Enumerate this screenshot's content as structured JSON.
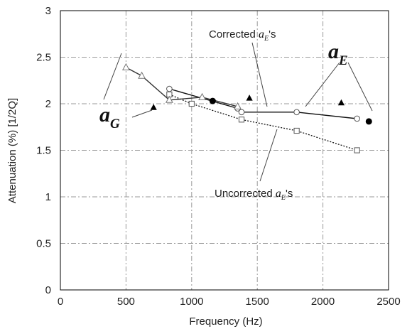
{
  "chart_data": {
    "type": "line",
    "title": "",
    "xlabel": "Frequency (Hz)",
    "ylabel": "Attenuation (%) [1/2Q]",
    "xlim": [
      0,
      2500
    ],
    "ylim": [
      0,
      3
    ],
    "x_ticks": [
      "0",
      "500",
      "1000",
      "1500",
      "2000",
      "2500"
    ],
    "y_ticks": [
      "0",
      "0.5",
      "1",
      "1.5",
      "2",
      "2.5",
      "3"
    ],
    "grid": true,
    "series": [
      {
        "name": "Corrected a_E's",
        "marker": "open-circle",
        "line": "solid",
        "points": [
          [
            830,
            2.16
          ],
          [
            1350,
            1.95
          ],
          [
            1380,
            1.91
          ],
          [
            1800,
            1.91
          ],
          [
            2260,
            1.84
          ]
        ]
      },
      {
        "name": "Uncorrected a_E's",
        "marker": "open-square",
        "line": "dotted",
        "points": [
          [
            830,
            2.1
          ],
          [
            1000,
            2.0
          ],
          [
            1380,
            1.83
          ],
          [
            1800,
            1.71
          ],
          [
            2260,
            1.5
          ]
        ]
      },
      {
        "name": "a_G",
        "marker": "open-triangle",
        "line": "solid",
        "points": [
          [
            500,
            2.39
          ],
          [
            620,
            2.3
          ],
          [
            830,
            2.04
          ],
          [
            1080,
            2.07
          ],
          [
            1350,
            1.97
          ]
        ]
      },
      {
        "name": "filled-triangles",
        "marker": "filled-triangle",
        "line": "none",
        "points": [
          [
            710,
            1.96
          ],
          [
            1440,
            2.06
          ],
          [
            2140,
            2.01
          ]
        ]
      },
      {
        "name": "filled-circles",
        "marker": "filled-circle",
        "line": "none",
        "points": [
          [
            1160,
            2.03
          ],
          [
            2350,
            1.81
          ]
        ]
      }
    ],
    "annotations": {
      "corrected_prefix": "Corrected ",
      "uncorrected_prefix": "Uncorrected ",
      "suffix": "'s",
      "a_letter": "a",
      "E_sub": "E",
      "G_sub": "G"
    }
  }
}
